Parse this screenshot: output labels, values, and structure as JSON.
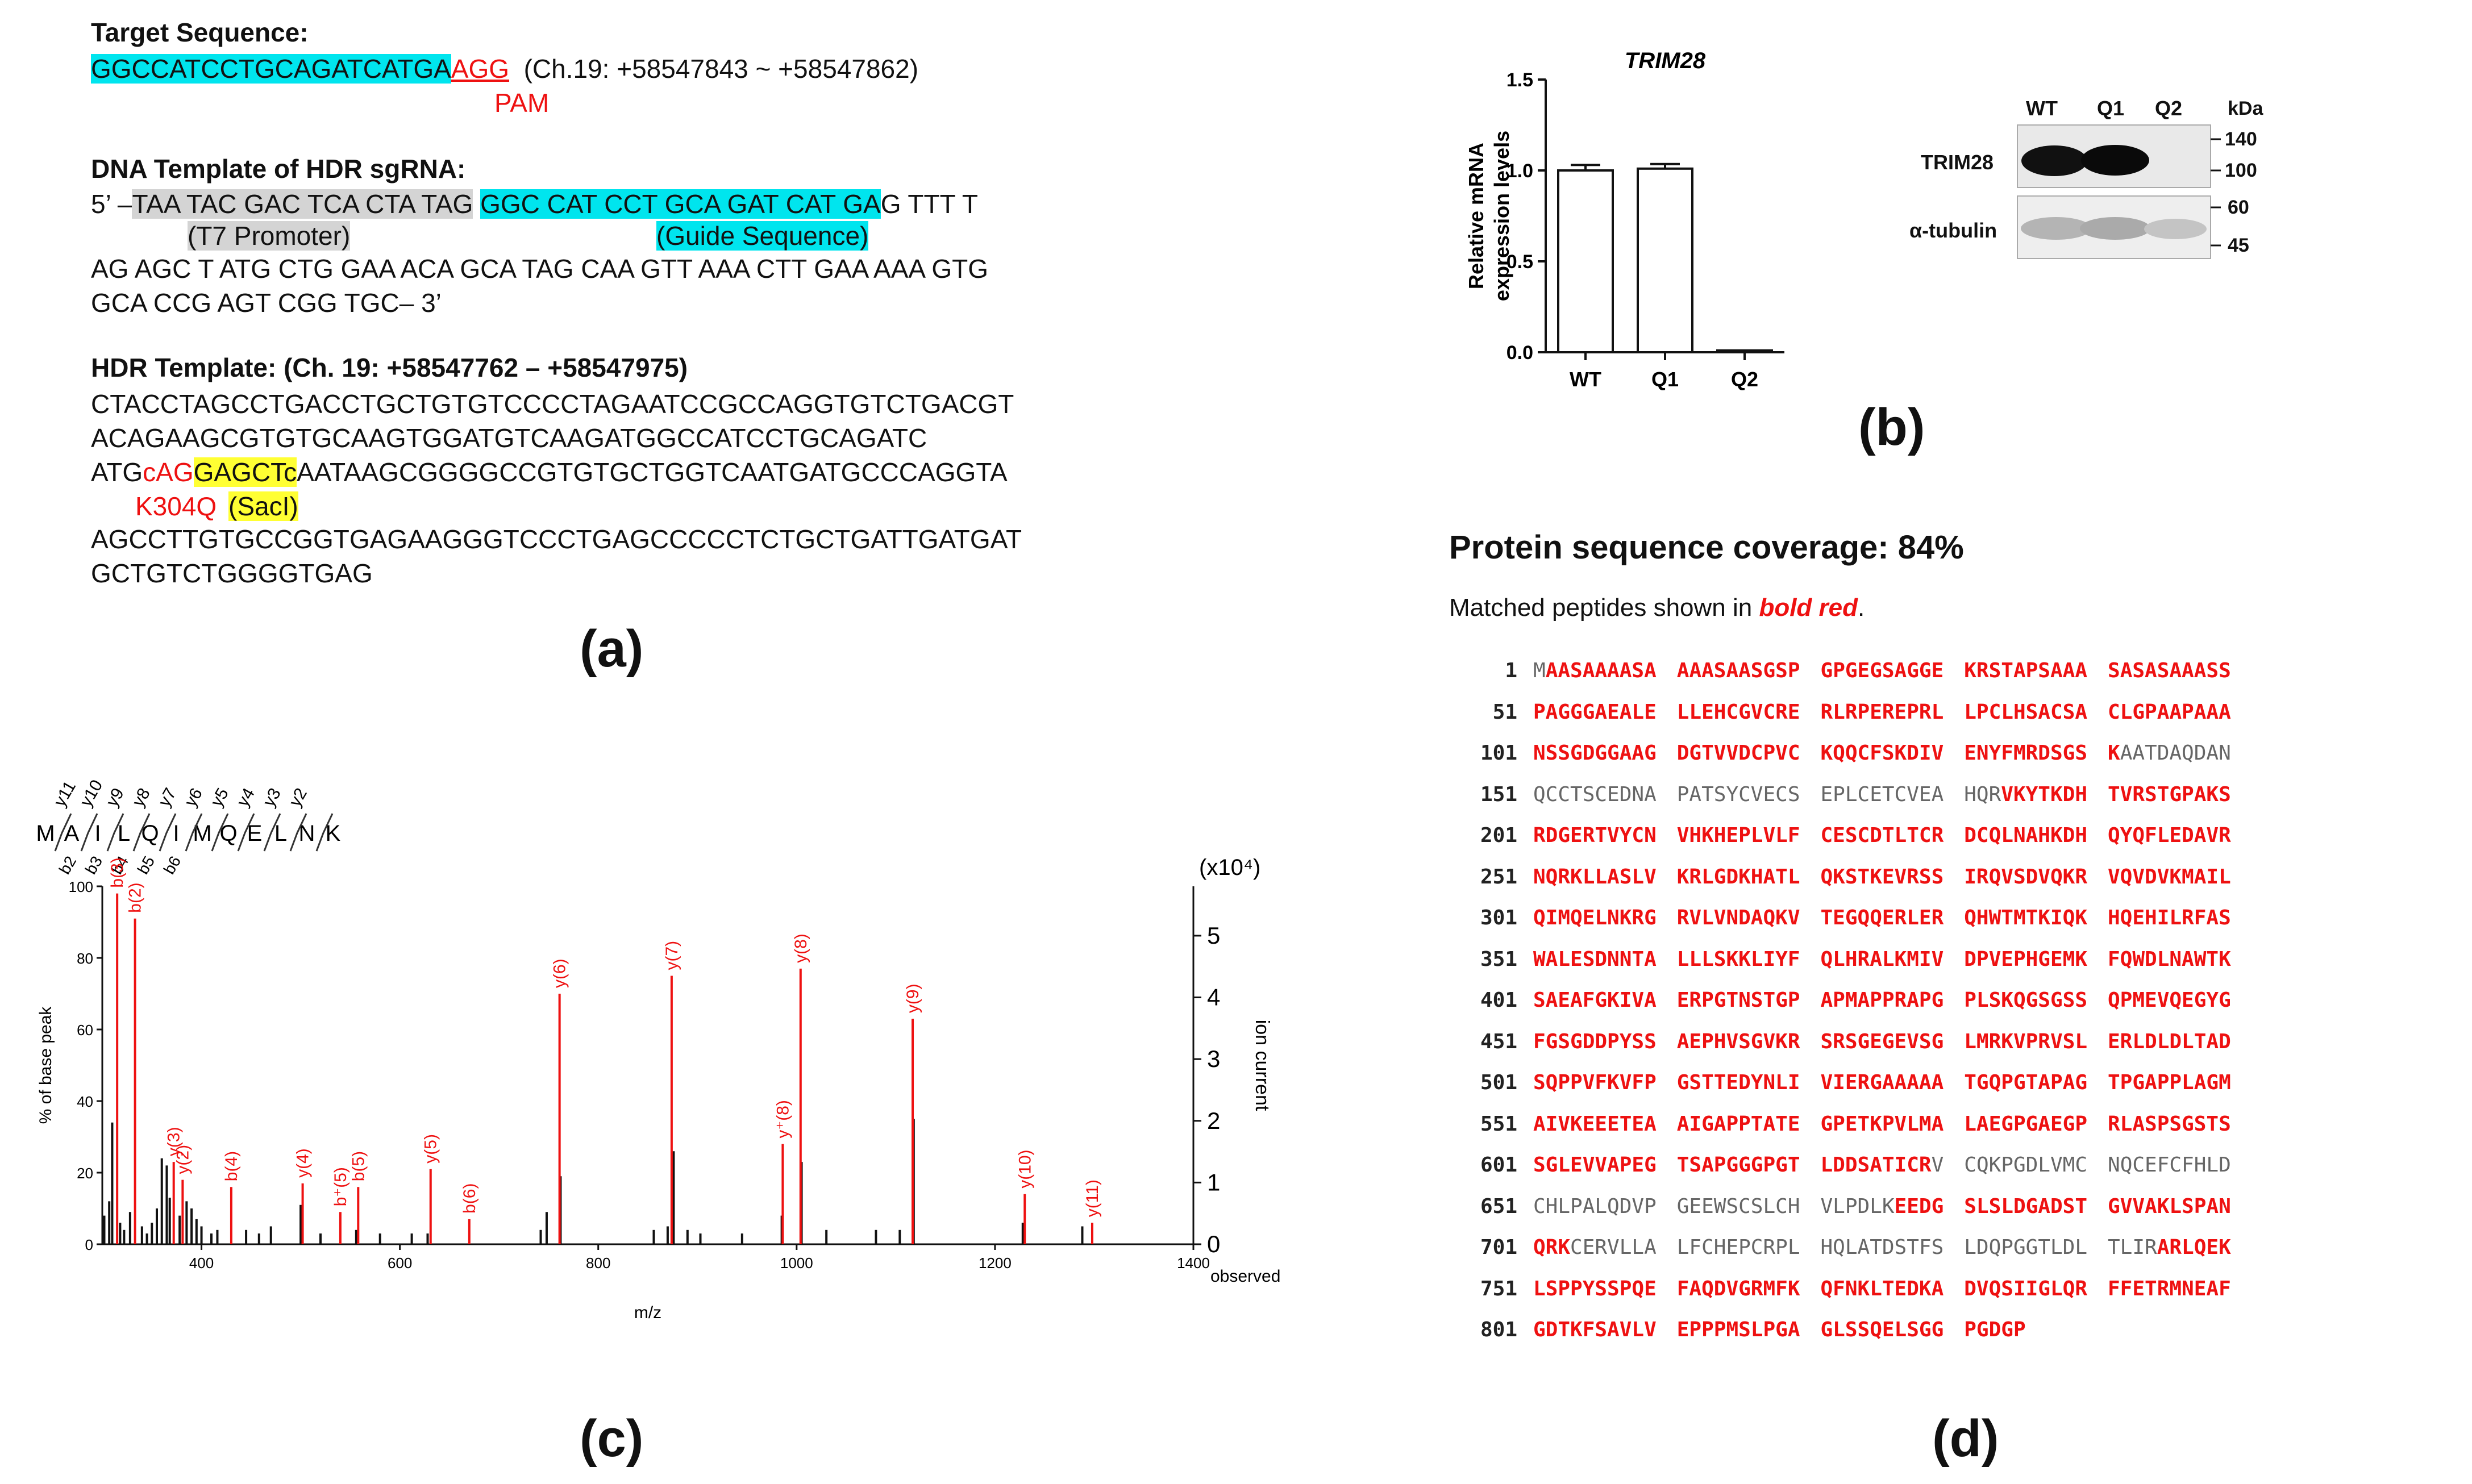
{
  "panel_a": {
    "target_heading": "Target Sequence:",
    "target_seq": "GGCCATCCTGCAGATCATGA",
    "pam_seq": "AGG",
    "target_coords": "(Ch.19: +58547843 ~ +58547862)",
    "pam_label": "PAM",
    "dna_heading": "DNA Template of HDR sgRNA:",
    "dna_prefix": "5’ –",
    "t7_seq": "TAA TAC GAC TCA CTA TAG",
    "guide_seq": "GGC CAT CCT GCA GAT CAT GA",
    "dna_line1_tail": "G TTT T",
    "t7_label": "(T7 Promoter)",
    "guide_label": "(Guide Sequence)",
    "dna_line2": "AG AGC T ATG CTG GAA ACA GCA TAG CAA GTT AAA CTT GAA AAA GTG",
    "dna_line3": "GCA CCG AGT CGG TGC– 3’",
    "hdr_heading": "HDR Template: (Ch. 19: +58547762 – +58547975)",
    "hdr_line1": "CTACCTAGCCTGACCTGCTGTGTCCCCTAGAATCCGCCAGGTGTCTGACGT",
    "hdr_line2": "ACAGAAGCGTGTGCAAGTGGATGTCAAGATGGCCATCCTGCAGATC",
    "hdr_line3_a": "ATG",
    "hdr_line3_b": "cAG",
    "hdr_line3_c": "GAGCTc",
    "hdr_line3_d": "AATAAGCGGGGCCGTGTGCTGGTCAATGATGCCCAGGTA",
    "k304q_label": "K304Q",
    "sacl_label": "(SacI)",
    "hdr_line4": "AGCCTTGTGCCGGTGAGAAGGGTCCCTGAGCCCCCTCTGCTGATTGATGAT",
    "hdr_line5": "GCTGTCTGGGGTGAG",
    "label": "(a)"
  },
  "panel_b": {
    "label": "(b)",
    "chart_data": {
      "type": "bar",
      "title": "TRIM28",
      "ylabel": "Relative mRNA expression levels",
      "categories": [
        "WT",
        "Q1",
        "Q2"
      ],
      "values": [
        1.0,
        1.01,
        0.01
      ],
      "errors": [
        0.03,
        0.025,
        0.0
      ],
      "ylim": [
        0,
        1.5
      ],
      "yticks": [
        "0.0",
        "0.5",
        "1.0",
        "1.5"
      ]
    },
    "blot": {
      "lanes": [
        "WT",
        "Q1",
        "Q2"
      ],
      "kda_label": "kDa",
      "rows": [
        "TRIM28",
        "α-tubulin"
      ],
      "markers_top": [
        "140",
        "100"
      ],
      "markers_bottom": [
        "60",
        "45"
      ]
    }
  },
  "panel_c": {
    "label": "(c)",
    "peptide": [
      "M",
      "A",
      "I",
      "L",
      "Q",
      "I",
      "M",
      "Q",
      "E",
      "L",
      "N",
      "K"
    ],
    "y_labels": [
      "y11",
      "y10",
      "y9",
      "y8",
      "y7",
      "y6",
      "y5",
      "y4",
      "y3",
      "y2"
    ],
    "b_labels": [
      "b2",
      "b3",
      "b4",
      "b5",
      "b6"
    ],
    "chart_data": {
      "type": "bar",
      "xlabel": "m/z",
      "ylabel": "% of base peak",
      "y2label": "ion current",
      "y2_unit": "(x10⁴)",
      "observed_label": "observed",
      "xlim": [
        300,
        1400
      ],
      "ylim": [
        0,
        100
      ],
      "xticks": [
        "400",
        "600",
        "800",
        "1000",
        "1200",
        "1400"
      ],
      "yticks": [
        "0",
        "20",
        "40",
        "60",
        "80",
        "100"
      ],
      "y2ticks": [
        "0",
        "1",
        "2",
        "3",
        "4",
        "5"
      ],
      "labeled_peaks": [
        {
          "label": "b(3)",
          "mz": 315,
          "y": 98
        },
        {
          "label": "b(2)",
          "mz": 333,
          "y": 91
        },
        {
          "label": "y(3)",
          "mz": 372,
          "y": 23
        },
        {
          "label": "y(2)",
          "mz": 381,
          "y": 18
        },
        {
          "label": "b(4)",
          "mz": 430,
          "y": 16
        },
        {
          "label": "y(4)",
          "mz": 502,
          "y": 17
        },
        {
          "label": "b⁺(5)",
          "mz": 540,
          "y": 9
        },
        {
          "label": "b(5)",
          "mz": 558,
          "y": 16
        },
        {
          "label": "y(5)",
          "mz": 631,
          "y": 21
        },
        {
          "label": "b(6)",
          "mz": 670,
          "y": 7
        },
        {
          "label": "y(6)",
          "mz": 761,
          "y": 70
        },
        {
          "label": "y(7)",
          "mz": 874,
          "y": 75
        },
        {
          "label": "y⁺(8)",
          "mz": 986,
          "y": 28
        },
        {
          "label": "y(8)",
          "mz": 1004,
          "y": 77
        },
        {
          "label": "y(9)",
          "mz": 1117,
          "y": 63
        },
        {
          "label": "y(10)",
          "mz": 1230,
          "y": 14
        },
        {
          "label": "y(11)",
          "mz": 1298,
          "y": 6
        }
      ],
      "unlabeled_peaks": [
        {
          "mz": 302,
          "y": 8
        },
        {
          "mz": 307,
          "y": 12
        },
        {
          "mz": 310,
          "y": 34
        },
        {
          "mz": 318,
          "y": 6
        },
        {
          "mz": 322,
          "y": 4
        },
        {
          "mz": 328,
          "y": 9
        },
        {
          "mz": 340,
          "y": 5
        },
        {
          "mz": 345,
          "y": 3
        },
        {
          "mz": 350,
          "y": 6
        },
        {
          "mz": 355,
          "y": 10
        },
        {
          "mz": 360,
          "y": 24
        },
        {
          "mz": 365,
          "y": 22
        },
        {
          "mz": 368,
          "y": 13
        },
        {
          "mz": 378,
          "y": 8
        },
        {
          "mz": 385,
          "y": 12
        },
        {
          "mz": 390,
          "y": 10
        },
        {
          "mz": 395,
          "y": 7
        },
        {
          "mz": 400,
          "y": 5
        },
        {
          "mz": 410,
          "y": 3
        },
        {
          "mz": 416,
          "y": 4
        },
        {
          "mz": 445,
          "y": 4
        },
        {
          "mz": 458,
          "y": 3
        },
        {
          "mz": 470,
          "y": 5
        },
        {
          "mz": 500,
          "y": 11
        },
        {
          "mz": 520,
          "y": 3
        },
        {
          "mz": 556,
          "y": 4
        },
        {
          "mz": 580,
          "y": 3
        },
        {
          "mz": 612,
          "y": 3
        },
        {
          "mz": 628,
          "y": 3
        },
        {
          "mz": 742,
          "y": 4
        },
        {
          "mz": 748,
          "y": 9
        },
        {
          "mz": 762,
          "y": 19
        },
        {
          "mz": 856,
          "y": 4
        },
        {
          "mz": 870,
          "y": 5
        },
        {
          "mz": 876,
          "y": 26
        },
        {
          "mz": 890,
          "y": 4
        },
        {
          "mz": 903,
          "y": 3
        },
        {
          "mz": 945,
          "y": 3
        },
        {
          "mz": 985,
          "y": 8
        },
        {
          "mz": 1005,
          "y": 23
        },
        {
          "mz": 1030,
          "y": 4
        },
        {
          "mz": 1080,
          "y": 4
        },
        {
          "mz": 1104,
          "y": 4
        },
        {
          "mz": 1118,
          "y": 35
        },
        {
          "mz": 1228,
          "y": 6
        },
        {
          "mz": 1288,
          "y": 5
        }
      ]
    }
  },
  "panel_d": {
    "label": "(d)",
    "title": "Protein sequence coverage: 84%",
    "subtitle_prefix": "Matched peptides shown in ",
    "subtitle_emph": "bold red",
    "subtitle_suffix": ".",
    "rows": [
      {
        "num": "1",
        "segs": [
          [
            "MAASAAAASA",
            ""
          ],
          [
            "AAASAASGSP",
            ""
          ],
          [
            "GPGEGSAGGE",
            ""
          ],
          [
            "KRSTAPSAAA",
            ""
          ],
          [
            "SASASAAASS",
            ""
          ]
        ]
      },
      {
        "num": "51",
        "segs": [
          [
            "PAGGGAEALE",
            ""
          ],
          [
            "LLEHCGVCRE",
            ""
          ],
          [
            "RLRPEREPRL",
            ""
          ],
          [
            "LPCLHSACSA",
            ""
          ],
          [
            "CLGPAAPAAA",
            ""
          ]
        ]
      },
      {
        "num": "101",
        "segs": [
          [
            "NSSGDGGAAG",
            ""
          ],
          [
            "DGTVVDCPVC",
            ""
          ],
          [
            "KQQCFSKDIV",
            ""
          ],
          [
            "ENYFMRDSGS",
            ""
          ],
          [
            "KAATDAQDAN",
            ""
          ]
        ]
      },
      {
        "num": "151",
        "segs": [
          [
            "QCCTSCEDNA",
            ""
          ],
          [
            "PATSYCVECS",
            ""
          ],
          [
            "EPLCETCVEA",
            ""
          ],
          [
            "HQRVKYTKDH",
            ""
          ],
          [
            "TVRSTGPAKS",
            ""
          ]
        ]
      },
      {
        "num": "201",
        "segs": [
          [
            "RDGERTVYCN",
            ""
          ],
          [
            "VHKHEPLVLF",
            ""
          ],
          [
            "CESCDTLTCR",
            ""
          ],
          [
            "DCQLNAHKDH",
            ""
          ],
          [
            "QYQFLEDAVR",
            ""
          ]
        ]
      },
      {
        "num": "251",
        "segs": [
          [
            "NQRKLLASLV",
            ""
          ],
          [
            "KRLGDKHATL",
            ""
          ],
          [
            "QKSTKEVRSS",
            ""
          ],
          [
            "IRQVSDVQKR",
            ""
          ],
          [
            "VQVDVKMAIL",
            ""
          ]
        ]
      },
      {
        "num": "301",
        "segs": [
          [
            "QIMQELNKRG",
            ""
          ],
          [
            "RVLVNDAQKV",
            ""
          ],
          [
            "TEGQQERLER",
            ""
          ],
          [
            "QHWTMTKIQK",
            ""
          ],
          [
            "HQEHILRFAS",
            ""
          ]
        ]
      },
      {
        "num": "351",
        "segs": [
          [
            "WALESDNNTA",
            ""
          ],
          [
            "LLLSKKLIYF",
            ""
          ],
          [
            "QLHRALKMIV",
            ""
          ],
          [
            "DPVEPHGEMK",
            ""
          ],
          [
            "FQWDLNAWTK",
            ""
          ]
        ]
      },
      {
        "num": "401",
        "segs": [
          [
            "SAEAFGKIVA",
            ""
          ],
          [
            "ERPGTNSTGP",
            ""
          ],
          [
            "APMAPPRAPG",
            ""
          ],
          [
            "PLSKQGSGSS",
            ""
          ],
          [
            "QPMEVQEGYG",
            ""
          ]
        ]
      },
      {
        "num": "451",
        "segs": [
          [
            "FGSGDDPYSS",
            ""
          ],
          [
            "AEPHVSGVKR",
            ""
          ],
          [
            "SRSGEGEVSG",
            ""
          ],
          [
            "LMRKVPRVSL",
            ""
          ],
          [
            "ERLDLDLTAD",
            ""
          ]
        ]
      },
      {
        "num": "501",
        "segs": [
          [
            "SQPPVFKVFP",
            ""
          ],
          [
            "GSTTEDYNLI",
            ""
          ],
          [
            "VIERGAAAAA",
            ""
          ],
          [
            "TGQPGTAPAG",
            ""
          ],
          [
            "TPGAPPLAGM",
            ""
          ]
        ]
      },
      {
        "num": "551",
        "segs": [
          [
            "AIVKEEETEA",
            ""
          ],
          [
            "AIGAPPTATE",
            ""
          ],
          [
            "GPETKPVLMA",
            ""
          ],
          [
            "LAEGPGAEGP",
            ""
          ],
          [
            "RLASPSGSTS",
            ""
          ]
        ]
      },
      {
        "num": "601",
        "segs": [
          [
            "SGLEVVAPEG",
            ""
          ],
          [
            "TSAPGGGPGT",
            ""
          ],
          [
            "LDDSATICRV",
            ""
          ],
          [
            "CQKPGDLVMC",
            ""
          ],
          [
            "NQCEFCFHLD",
            ""
          ]
        ]
      },
      {
        "num": "651",
        "segs": [
          [
            "CHLPALQDVP",
            ""
          ],
          [
            "GEEWSCSLCH",
            ""
          ],
          [
            "VLPDLKEEDG",
            ""
          ],
          [
            "SLSLDGADST",
            ""
          ],
          [
            "GVVAKLSPAN",
            ""
          ]
        ]
      },
      {
        "num": "701",
        "segs": [
          [
            "QRKCERVLLA",
            ""
          ],
          [
            "LFCHEPCRPL",
            ""
          ],
          [
            "HQLATDSTFS",
            ""
          ],
          [
            "LDQPGGTLDL",
            ""
          ],
          [
            "TLIRARLQEK",
            ""
          ]
        ]
      },
      {
        "num": "751",
        "segs": [
          [
            "LSPPYSSPQE",
            ""
          ],
          [
            "FAQDVGRMFK",
            ""
          ],
          [
            "QFNKLTEDKA",
            ""
          ],
          [
            "DVQSIIGLQR",
            ""
          ],
          [
            "FFETRMNEAF",
            ""
          ]
        ]
      },
      {
        "num": "801",
        "segs": [
          [
            "GDTKFSAVLV",
            ""
          ],
          [
            "EPPPMSLPGA",
            ""
          ],
          [
            "GLSSQELSGG",
            ""
          ],
          [
            "PGDGP",
            ""
          ]
        ]
      }
    ],
    "match_mask": [
      [
        "0111111111",
        "1111111111",
        "1111111111",
        "1111111111",
        "1111111111"
      ],
      [
        "1111111111",
        "1111111111",
        "1111111111",
        "1111111111",
        "1111111111"
      ],
      [
        "1111111111",
        "1111111111",
        "1111111111",
        "1111111111",
        "1000000000"
      ],
      [
        "0000000000",
        "0000000000",
        "0000000000",
        "0001111111",
        "1111111111"
      ],
      [
        "1111111111",
        "1111111111",
        "1111111111",
        "1111111111",
        "1111111111"
      ],
      [
        "1111111111",
        "1111111111",
        "1111111111",
        "1111111111",
        "1111111111"
      ],
      [
        "1111111111",
        "1111111111",
        "1111111111",
        "1111111111",
        "1111111111"
      ],
      [
        "1111111111",
        "1111111111",
        "1111111111",
        "1111111111",
        "1111111111"
      ],
      [
        "1111111111",
        "1111111111",
        "1111111111",
        "1111111111",
        "1111111111"
      ],
      [
        "1111111111",
        "1111111111",
        "1111111111",
        "1111111111",
        "1111111111"
      ],
      [
        "1111111111",
        "1111111111",
        "1111111111",
        "1111111111",
        "1111111111"
      ],
      [
        "1111111111",
        "1111111111",
        "1111111111",
        "1111111111",
        "1111111111"
      ],
      [
        "1111111111",
        "1111111111",
        "1111111110",
        "0000000000",
        "0000000000"
      ],
      [
        "0000000000",
        "0000000000",
        "0000001111",
        "1111111111",
        "1111111111"
      ],
      [
        "1110000000",
        "0000000000",
        "0000000000",
        "0000000000",
        "0000111111"
      ],
      [
        "1111111111",
        "1111111111",
        "1111111111",
        "1111111111",
        "1111111111"
      ],
      [
        "1111111111",
        "1111111111",
        "1111111111",
        "11111"
      ]
    ]
  }
}
